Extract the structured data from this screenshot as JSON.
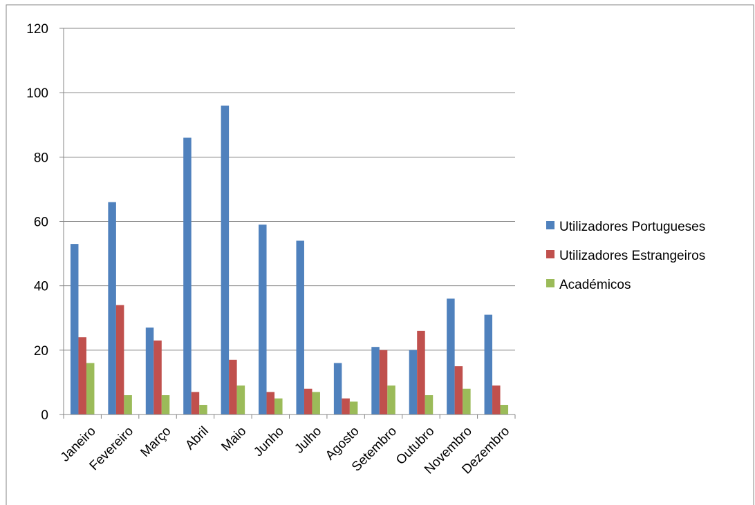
{
  "chart_data": {
    "type": "bar",
    "title": "",
    "xlabel": "",
    "ylabel": "",
    "ylim": [
      0,
      120
    ],
    "yticks": [
      0,
      20,
      40,
      60,
      80,
      100,
      120
    ],
    "grid": true,
    "legend_position": "right",
    "categories": [
      "Janeiro",
      "Fevereiro",
      "Março",
      "Abril",
      "Maio",
      "Junho",
      "Julho",
      "Agosto",
      "Setembro",
      "Outubro",
      "Novembro",
      "Dezembro"
    ],
    "series": [
      {
        "name": "Utilizadores Portugueses",
        "color": "#4f81bd",
        "values": [
          53,
          66,
          27,
          86,
          96,
          59,
          54,
          16,
          21,
          20,
          36,
          31
        ]
      },
      {
        "name": "Utilizadores Estrangeiros",
        "color": "#c0504d",
        "values": [
          24,
          34,
          23,
          7,
          17,
          7,
          8,
          5,
          20,
          26,
          15,
          9
        ]
      },
      {
        "name": "Académicos",
        "color": "#9bbb59",
        "values": [
          16,
          6,
          6,
          3,
          9,
          5,
          7,
          4,
          9,
          6,
          8,
          3
        ]
      }
    ]
  }
}
